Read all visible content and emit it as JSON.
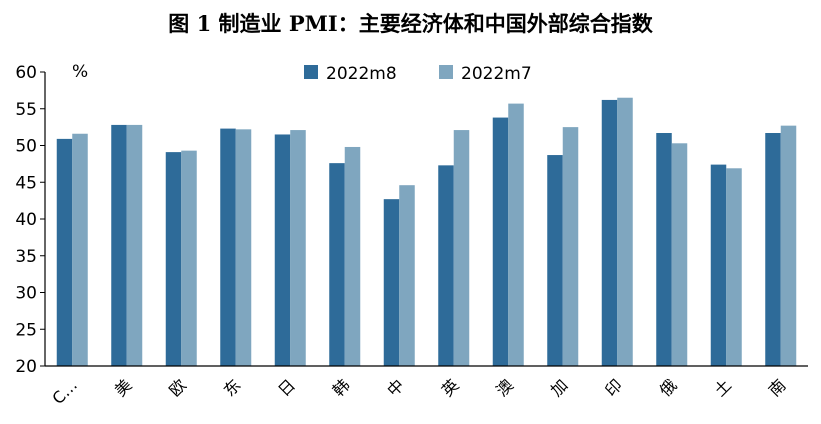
{
  "chart_data": {
    "type": "bar",
    "title": "图 1 制造业 PMI：主要经济体和中国外部综合指数",
    "ylabel": "%",
    "xlabel": "",
    "ylim": [
      20,
      60
    ],
    "yticks": [
      20,
      25,
      30,
      35,
      40,
      45,
      50,
      55,
      60
    ],
    "categories": [
      "C…",
      "美",
      "欧",
      "东",
      "日",
      "韩",
      "中",
      "英",
      "澳",
      "加",
      "印",
      "俄",
      "土",
      "南"
    ],
    "series": [
      {
        "name": "2022m8",
        "color": "#2e6b99",
        "values": [
          50.9,
          52.8,
          49.1,
          52.3,
          51.5,
          47.6,
          42.7,
          47.3,
          53.8,
          48.7,
          56.2,
          51.7,
          47.4,
          51.7
        ]
      },
      {
        "name": "2022m7",
        "color": "#7fa6bf",
        "values": [
          51.6,
          52.8,
          49.3,
          52.2,
          52.1,
          49.8,
          44.6,
          52.1,
          55.7,
          52.5,
          56.5,
          50.3,
          46.9,
          52.7
        ]
      }
    ],
    "legend": "top-center"
  }
}
